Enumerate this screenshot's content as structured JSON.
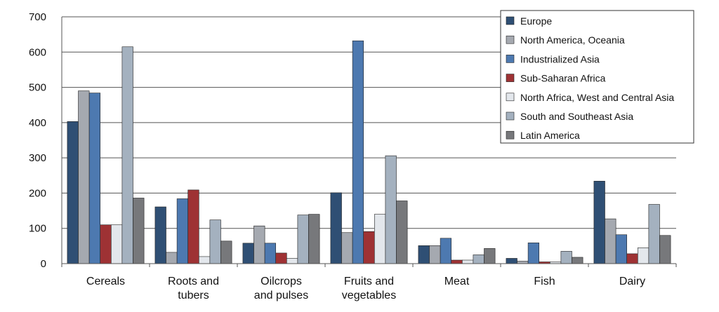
{
  "chart_data": {
    "type": "bar",
    "categories": [
      "Cereals",
      "Roots and tubers",
      "Oilcrops and pulses",
      "Fruits and vegetables",
      "Meat",
      "Fish",
      "Dairy"
    ],
    "category_lines": [
      [
        "Cereals"
      ],
      [
        "Roots and",
        "tubers"
      ],
      [
        "Oilcrops",
        "and pulses"
      ],
      [
        "Fruits and",
        "vegetables"
      ],
      [
        "Meat"
      ],
      [
        "Fish"
      ],
      [
        "Dairy"
      ]
    ],
    "ylim": [
      0,
      700
    ],
    "yticks": [
      0,
      100,
      200,
      300,
      400,
      500,
      600,
      700
    ],
    "grid": true,
    "legend_position": "top-right",
    "series": [
      {
        "name": "Europe",
        "color": "#2f4f74",
        "values": [
          403,
          161,
          58,
          201,
          51,
          15,
          234
        ]
      },
      {
        "name": "North America, Oceania",
        "color": "#a5a9b0",
        "values": [
          490,
          32,
          107,
          88,
          51,
          7,
          127
        ]
      },
      {
        "name": "Industrialized Asia",
        "color": "#4d79b0",
        "values": [
          484,
          184,
          58,
          632,
          72,
          59,
          82
        ]
      },
      {
        "name": "Sub-Saharan Africa",
        "color": "#9e3234",
        "values": [
          110,
          209,
          30,
          91,
          10,
          5,
          28
        ]
      },
      {
        "name": "North Africa, West and Central Asia",
        "color": "#e3e7ec",
        "values": [
          110,
          20,
          15,
          140,
          10,
          5,
          45
        ]
      },
      {
        "name": "South and Southeast Asia",
        "color": "#a4b1bf",
        "values": [
          615,
          124,
          138,
          306,
          25,
          35,
          168
        ]
      },
      {
        "name": "Latin America",
        "color": "#77787b",
        "values": [
          186,
          64,
          140,
          178,
          43,
          18,
          80
        ]
      }
    ]
  }
}
